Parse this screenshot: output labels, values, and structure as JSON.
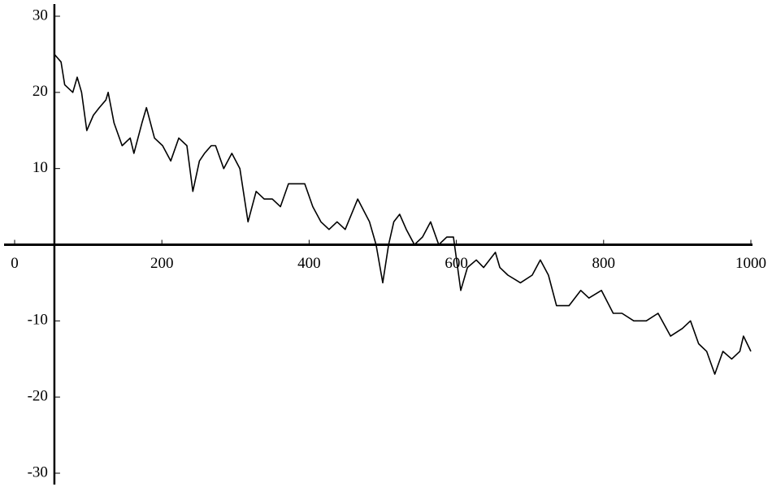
{
  "chart_data": {
    "type": "line",
    "x": [
      54,
      63,
      68,
      79,
      85,
      91,
      98,
      107,
      115,
      124,
      127,
      135,
      146,
      157,
      162,
      173,
      179,
      190,
      201,
      212,
      223,
      234,
      242,
      251,
      258,
      267,
      273,
      284,
      295,
      306,
      317,
      328,
      339,
      350,
      361,
      372,
      383,
      394,
      405,
      416,
      427,
      438,
      449,
      466,
      482,
      491,
      500,
      508,
      515,
      523,
      532,
      543,
      554,
      565,
      576,
      587,
      596,
      606,
      615,
      627,
      637,
      653,
      659,
      670,
      687,
      703,
      714,
      725,
      736,
      753,
      769,
      780,
      797,
      813,
      825,
      841,
      858,
      874,
      891,
      907,
      918,
      929,
      940,
      951,
      962,
      974,
      985,
      990,
      1000
    ],
    "series": [
      {
        "color": "#000000",
        "values": [
          25,
          24,
          21,
          20,
          22,
          20,
          15,
          17,
          18,
          19,
          20,
          16,
          13,
          14,
          12,
          16,
          18,
          14,
          13,
          11,
          14,
          13,
          7,
          11,
          12,
          13,
          13,
          10,
          12,
          10,
          3,
          7,
          6,
          6,
          5,
          8,
          8,
          8,
          5,
          3,
          2,
          3,
          2,
          6,
          3,
          0,
          -5,
          0,
          3,
          4,
          2,
          0,
          1,
          3,
          0,
          1,
          1,
          -6,
          -3,
          -2,
          -3,
          -1,
          -3,
          -4,
          -5,
          -4,
          -2,
          -4,
          -8,
          -8,
          -6,
          -7,
          -6,
          -9,
          -9,
          -10,
          -10,
          -9,
          -12,
          -11,
          -10,
          -13,
          -14,
          -17,
          -14,
          -15,
          -14,
          -12,
          -14
        ]
      }
    ],
    "xlim": [
      0,
      1000
    ],
    "xticks": [
      0,
      200,
      400,
      600,
      800,
      1000
    ],
    "ylim": [
      -30,
      30
    ],
    "yticks": [
      -30,
      -20,
      -10,
      0,
      10,
      20,
      30
    ]
  }
}
